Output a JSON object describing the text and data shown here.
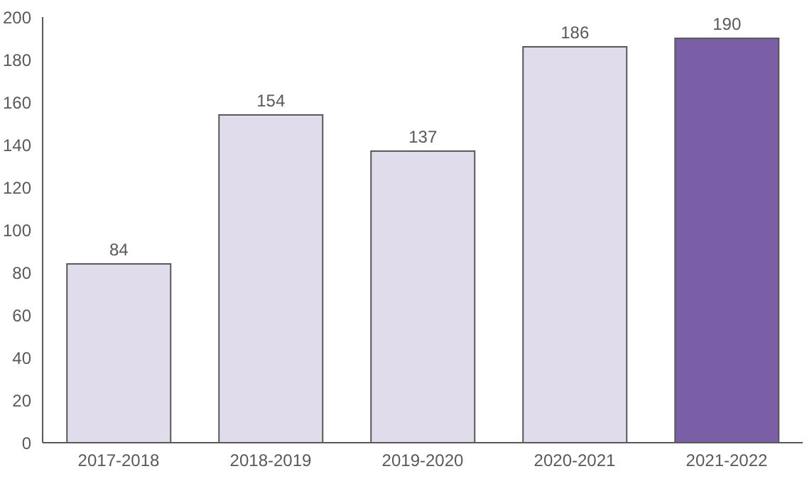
{
  "chart_data": {
    "type": "bar",
    "categories": [
      "2017-2018",
      "2018-2019",
      "2019-2020",
      "2020-2021",
      "2021-2022"
    ],
    "values": [
      84,
      154,
      137,
      186,
      190
    ],
    "colors": [
      "#e0dcec",
      "#e0dcec",
      "#e0dcec",
      "#e0dcec",
      "#7b5fa6"
    ],
    "ylim": [
      0,
      200
    ],
    "yticks": [
      0,
      20,
      40,
      60,
      80,
      100,
      120,
      140,
      160,
      180,
      200
    ],
    "grid": false,
    "data_labels": true
  }
}
